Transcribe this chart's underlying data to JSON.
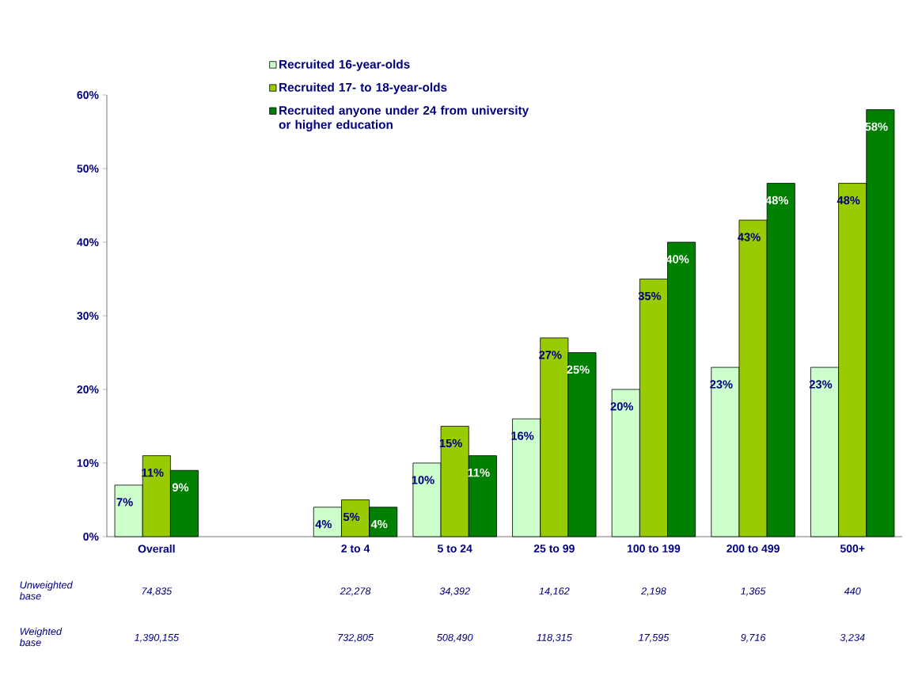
{
  "chart_data": {
    "type": "bar",
    "categories": [
      "Overall",
      null,
      "2 to 4",
      "5 to 24",
      "25 to 99",
      "100 to 199",
      "200 to 499",
      "500+"
    ],
    "series": [
      {
        "name": "Recruited 16-year-olds",
        "color": "#ccffcc",
        "values": [
          7,
          null,
          4,
          10,
          16,
          20,
          23,
          23
        ],
        "value_labels": [
          "7%",
          null,
          "4%",
          "10%",
          "16%",
          "20%",
          "23%",
          "23%"
        ]
      },
      {
        "name": "Recruited 17- to 18-year-olds",
        "color": "#99cc00",
        "values": [
          11,
          null,
          5,
          15,
          27,
          35,
          43,
          48
        ],
        "value_labels": [
          "11%",
          null,
          "5%",
          "15%",
          "27%",
          "35%",
          "43%",
          "48%"
        ]
      },
      {
        "name": "Recruited anyone under 24 from university or higher education",
        "color": "#008000",
        "values": [
          9,
          null,
          4,
          11,
          25,
          40,
          48,
          58
        ],
        "value_labels": [
          "9%",
          null,
          "4%",
          "11%",
          "25%",
          "40%",
          "48%",
          "58%"
        ]
      }
    ],
    "ylim": [
      0,
      60
    ],
    "yticks": [
      {
        "value": 0,
        "label": "0%"
      },
      {
        "value": 10,
        "label": "10%"
      },
      {
        "value": 20,
        "label": "20%"
      },
      {
        "value": 30,
        "label": "30%"
      },
      {
        "value": 40,
        "label": "40%"
      },
      {
        "value": 50,
        "label": "50%"
      },
      {
        "value": 60,
        "label": "60%"
      }
    ],
    "legend": "top",
    "annotations": [
      "Unweighted base",
      "74,835",
      "22,278",
      "34,392",
      "14,162",
      "2,198",
      "1,365",
      "440",
      "Weighted base",
      "1,390,155",
      "732,805",
      "508,490",
      "118,315",
      "17,595",
      "9,716",
      "3,234"
    ]
  }
}
